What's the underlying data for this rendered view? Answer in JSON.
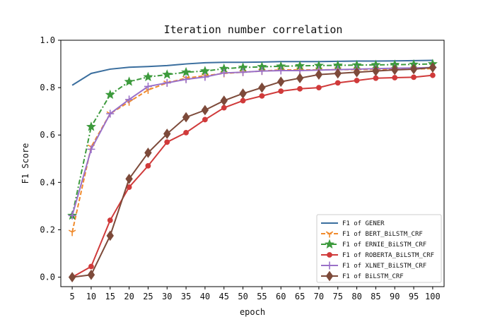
{
  "chart_data": {
    "type": "line",
    "title": "Iteration number correlation",
    "xlabel": "epoch",
    "ylabel": "F1 Score",
    "x": [
      5,
      10,
      15,
      20,
      25,
      30,
      35,
      40,
      45,
      50,
      55,
      60,
      65,
      70,
      75,
      80,
      85,
      90,
      95,
      100
    ],
    "xlim": [
      2,
      103
    ],
    "ylim": [
      -0.04,
      1.0
    ],
    "yticks": [
      0.0,
      0.2,
      0.4,
      0.6,
      0.8,
      1.0
    ],
    "ytick_labels": [
      "0.0",
      "0.2",
      "0.4",
      "0.6",
      "0.8",
      "1.0"
    ],
    "grid": false,
    "legend_position": "lower-right",
    "series": [
      {
        "name": "F1 of GENER",
        "color": "#3a6e9e",
        "marker": "none",
        "dash": "solid",
        "values": [
          0.81,
          0.86,
          0.878,
          0.886,
          0.889,
          0.893,
          0.9,
          0.905,
          0.907,
          0.907,
          0.908,
          0.91,
          0.91,
          0.91,
          0.911,
          0.912,
          0.912,
          0.913,
          0.914,
          0.915
        ]
      },
      {
        "name": "F1 of BERT_BiLSTM_CRF",
        "color": "#f08a2c",
        "marker": "tri",
        "dash": "dashed",
        "values": [
          0.19,
          0.55,
          0.69,
          0.74,
          0.79,
          0.82,
          0.84,
          0.85,
          0.86,
          0.865,
          0.87,
          0.875,
          0.875,
          0.875,
          0.876,
          0.876,
          0.877,
          0.878,
          0.879,
          0.88
        ]
      },
      {
        "name": "F1 of ERNIE_BiLSTM_CRF",
        "color": "#3c9a3c",
        "marker": "star",
        "dash": "dashdot",
        "values": [
          0.26,
          0.635,
          0.77,
          0.825,
          0.845,
          0.855,
          0.865,
          0.87,
          0.88,
          0.885,
          0.888,
          0.89,
          0.892,
          0.893,
          0.894,
          0.895,
          0.896,
          0.897,
          0.898,
          0.9
        ]
      },
      {
        "name": "F1 of ROBERTA_BiLSTM_CRF",
        "color": "#d03a3a",
        "marker": "circle",
        "dash": "solid",
        "values": [
          0.0,
          0.045,
          0.24,
          0.38,
          0.47,
          0.57,
          0.61,
          0.665,
          0.715,
          0.745,
          0.765,
          0.785,
          0.795,
          0.8,
          0.82,
          0.83,
          0.84,
          0.842,
          0.844,
          0.852
        ]
      },
      {
        "name": "F1 of XLNET_BiLSTM_CRF",
        "color": "#9a70c8",
        "marker": "plus",
        "dash": "solid",
        "values": [
          0.26,
          0.54,
          0.69,
          0.75,
          0.805,
          0.82,
          0.835,
          0.845,
          0.862,
          0.865,
          0.87,
          0.872,
          0.872,
          0.874,
          0.876,
          0.878,
          0.88,
          0.882,
          0.883,
          0.885
        ]
      },
      {
        "name": "F1 of BiLSTM_CRF",
        "color": "#7d4a3a",
        "marker": "diamond",
        "dash": "solid",
        "values": [
          0.0,
          0.01,
          0.175,
          0.415,
          0.525,
          0.605,
          0.675,
          0.705,
          0.745,
          0.775,
          0.8,
          0.825,
          0.84,
          0.855,
          0.86,
          0.865,
          0.87,
          0.875,
          0.878,
          0.885
        ]
      }
    ]
  }
}
